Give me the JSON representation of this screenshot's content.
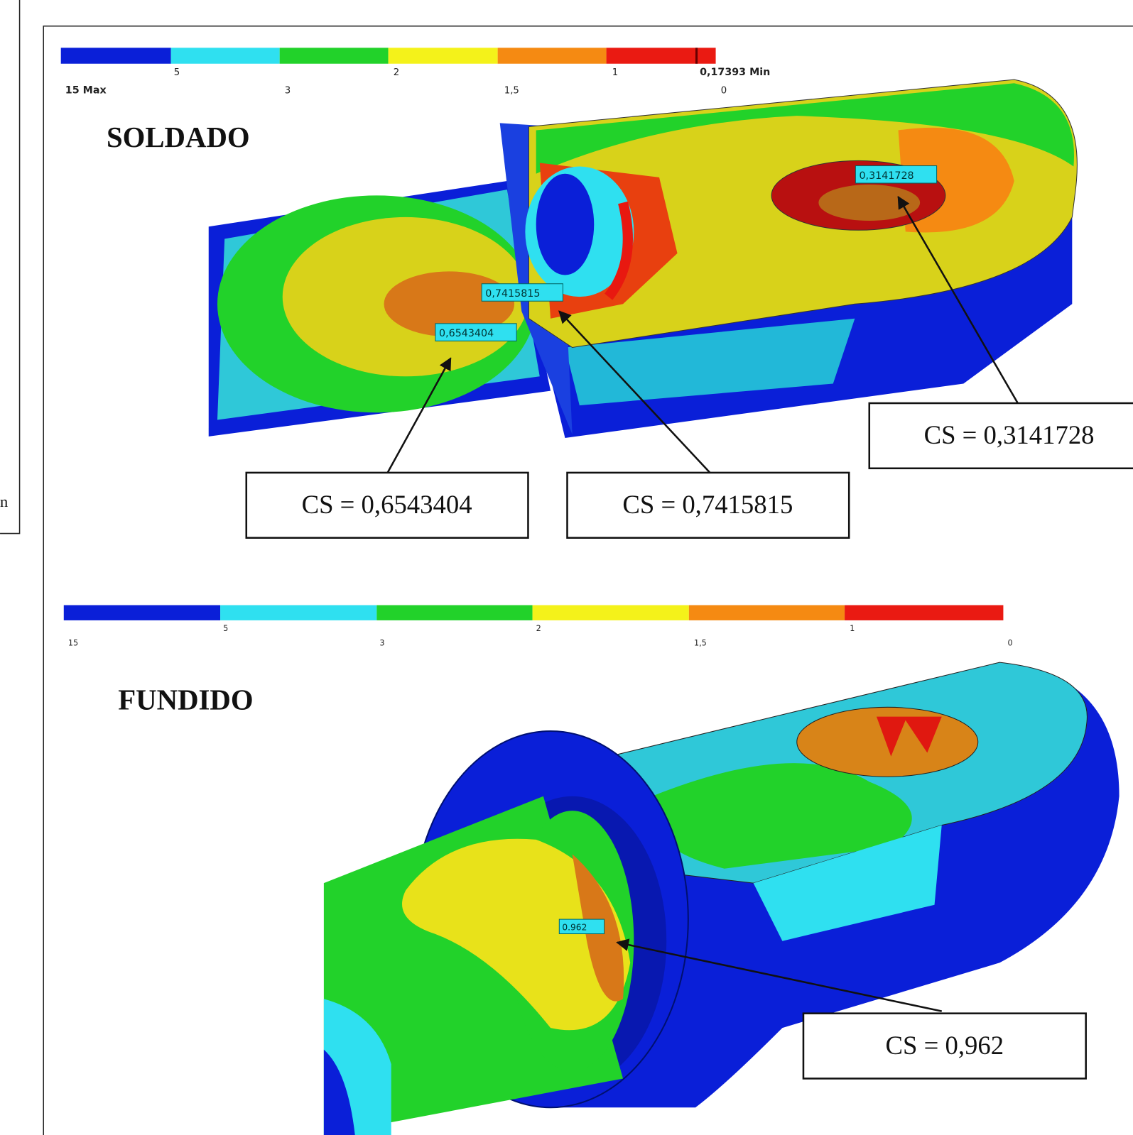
{
  "left_fragment": "n",
  "soldado": {
    "title": "SOLDADO",
    "legend": {
      "labels": [
        "15 Max",
        "5",
        "3",
        "2",
        "1,5",
        "1",
        "0,17393 Min",
        "0"
      ]
    },
    "probes": [
      "0,7415815",
      "0,6543404",
      "0,3141728"
    ],
    "callouts": [
      "CS = 0,6543404",
      "CS = 0,7415815",
      "CS = 0,3141728"
    ]
  },
  "fundido": {
    "title": "FUNDIDO",
    "legend": {
      "labels": [
        "15",
        "5",
        "3",
        "2",
        "1,5",
        "1",
        "0"
      ]
    },
    "probes": [
      "0.962"
    ],
    "callouts": [
      "CS = 0,962"
    ]
  }
}
